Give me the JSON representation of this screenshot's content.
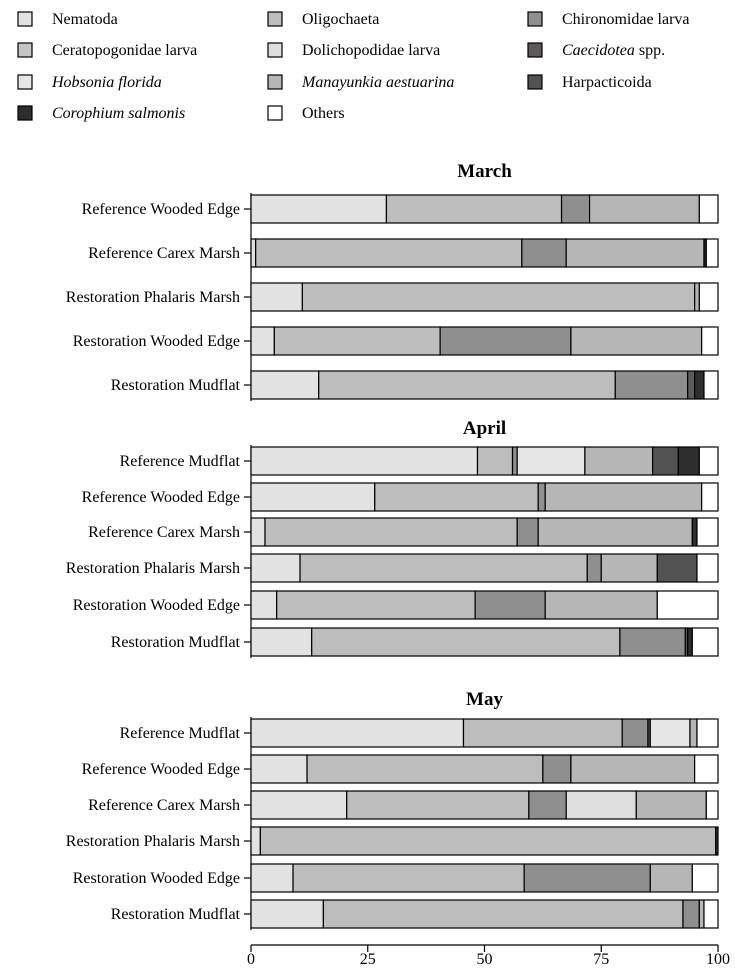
{
  "chart_data": {
    "type": "bar",
    "orientation": "horizontal",
    "stacked": true,
    "xlim": [
      0,
      100
    ],
    "x_ticks": [
      "0",
      "25",
      "50",
      "75",
      "100"
    ],
    "legend_position": "top",
    "legend": [
      {
        "name": "Nematoda",
        "italic": false,
        "color": "#e2e2e2"
      },
      {
        "name": "Oligochaeta",
        "italic": false,
        "color": "#bdbdbd"
      },
      {
        "name": "Chironomidae larva",
        "italic": false,
        "color": "#8f8f8f"
      },
      {
        "name": "Ceratopogonidae larva",
        "italic": false,
        "color": "#c4c4c4"
      },
      {
        "name": "Dolichopodidae larva",
        "italic": false,
        "color": "#dedede"
      },
      {
        "name": "Caecidotea",
        "suffix": " spp.",
        "italic": true,
        "color": "#5e5a5c"
      },
      {
        "name": "Hobsonia florida",
        "italic": true,
        "color": "#e6e6e6"
      },
      {
        "name": "Manayunkia aestuarina",
        "italic": true,
        "color": "#b6b6b6"
      },
      {
        "name": "Harpacticoida",
        "italic": false,
        "color": "#525252"
      },
      {
        "name": "Corophium salmonis",
        "italic": true,
        "color": "#2e2e2e"
      },
      {
        "name": "Others",
        "italic": false,
        "color": "#ffffff"
      }
    ],
    "panels": [
      {
        "title": "March",
        "categories": [
          "Reference Wooded Edge",
          "Reference Carex Marsh",
          "Restoration Phalaris Marsh",
          "Restoration Wooded Edge",
          "Restoration Mudflat"
        ],
        "values": [
          [
            29,
            37.5,
            6,
            0,
            0,
            0,
            0,
            23.5,
            0,
            0,
            4
          ],
          [
            1,
            57,
            9.5,
            0,
            0,
            0,
            0,
            29.5,
            0,
            0.5,
            2.5
          ],
          [
            11,
            84,
            0,
            0,
            0,
            0,
            0,
            1,
            0,
            0,
            4
          ],
          [
            5,
            35.5,
            28,
            0,
            0,
            0,
            0,
            28,
            0,
            0,
            3.5
          ],
          [
            14.5,
            63.5,
            15.5,
            0,
            0,
            1.5,
            0,
            0,
            0,
            2,
            3
          ]
        ]
      },
      {
        "title": "April",
        "categories": [
          "Reference Mudflat",
          "Reference Wooded Edge",
          "Reference Carex Marsh",
          "Restoration Phalaris Marsh",
          "Restoration Wooded Edge",
          "Restoration Mudflat"
        ],
        "values": [
          [
            48.5,
            7.5,
            1,
            0,
            0,
            0,
            14.5,
            14.5,
            5.5,
            4.5,
            4
          ],
          [
            26.5,
            35,
            1.5,
            0,
            0,
            0,
            0,
            33.5,
            0,
            0,
            3.5
          ],
          [
            3,
            54,
            4.5,
            0,
            0,
            0,
            0,
            33,
            0,
            1,
            4.5
          ],
          [
            10.5,
            61.5,
            3,
            0,
            0,
            0,
            0,
            12,
            8.5,
            0,
            4.5
          ],
          [
            5.5,
            42.5,
            15,
            0,
            0,
            0,
            0,
            24,
            0,
            0,
            13
          ],
          [
            13,
            66,
            14,
            0,
            0,
            0.5,
            0,
            0,
            0,
            1,
            5.5
          ]
        ]
      },
      {
        "title": "May",
        "categories": [
          "Reference Mudflat",
          "Reference Wooded Edge",
          "Reference Carex Marsh",
          "Restoration Phalaris Marsh",
          "Restoration Wooded Edge",
          "Restoration Mudflat"
        ],
        "values": [
          [
            45.5,
            34,
            5.5,
            0,
            0,
            0.5,
            8.5,
            1.5,
            0,
            0,
            4.5
          ],
          [
            12,
            50.5,
            6,
            0,
            0,
            0,
            0,
            26.5,
            0,
            0,
            5
          ],
          [
            20.5,
            39,
            8,
            0,
            15,
            0,
            0,
            15,
            0,
            0,
            2.5
          ],
          [
            2,
            97.5,
            0,
            0,
            0,
            0,
            0,
            0,
            0,
            0.5,
            0
          ],
          [
            9,
            49.5,
            27,
            0,
            0,
            0,
            0,
            9,
            0,
            0,
            5.5
          ],
          [
            15.5,
            77,
            3.5,
            0,
            0,
            0,
            0,
            1,
            0,
            0,
            3
          ]
        ]
      }
    ]
  }
}
